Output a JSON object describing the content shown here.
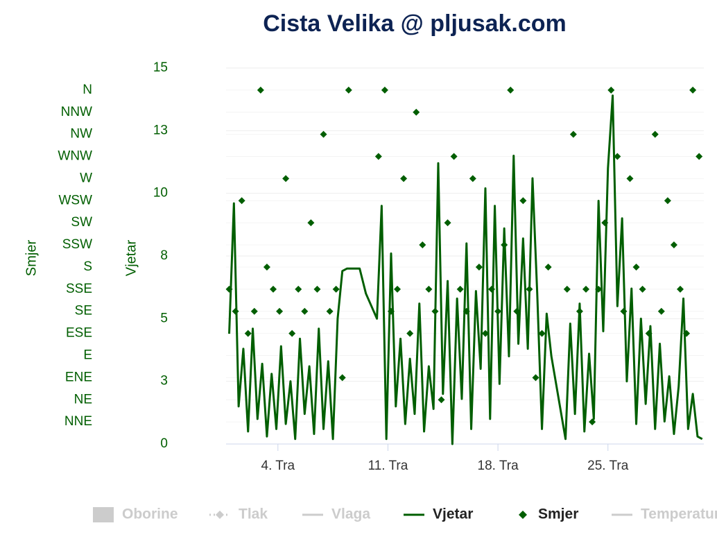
{
  "chart_data": {
    "type": "combo",
    "title": "Cista Velika @ pljusak.com",
    "xlim": [
      0.7,
      31.1
    ],
    "xticks": [
      {
        "value": 4,
        "label": "4. Tra"
      },
      {
        "value": 11,
        "label": "11. Tra"
      },
      {
        "value": 18,
        "label": "18. Tra"
      },
      {
        "value": 25,
        "label": "25. Tra"
      }
    ],
    "ylabel": "Vjetar",
    "ylim": [
      0,
      15
    ],
    "yticks": [
      {
        "value": 0,
        "label": "0"
      },
      {
        "value": 2.5,
        "label": "3"
      },
      {
        "value": 5,
        "label": "5"
      },
      {
        "value": 7.5,
        "label": "8"
      },
      {
        "value": 10,
        "label": "10"
      },
      {
        "value": 12.5,
        "label": "13"
      },
      {
        "value": 15,
        "label": "15"
      }
    ],
    "y2label": "Smjer",
    "y2lim": [
      0,
      382.5
    ],
    "y2ticks": [
      {
        "value": 22.5,
        "label": "NNE"
      },
      {
        "value": 45,
        "label": "NE"
      },
      {
        "value": 67.5,
        "label": "ENE"
      },
      {
        "value": 90,
        "label": "E"
      },
      {
        "value": 112.5,
        "label": "ESE"
      },
      {
        "value": 135,
        "label": "SE"
      },
      {
        "value": 157.5,
        "label": "SSE"
      },
      {
        "value": 180,
        "label": "S"
      },
      {
        "value": 202.5,
        "label": "SSW"
      },
      {
        "value": 225,
        "label": "SW"
      },
      {
        "value": 247.5,
        "label": "WSW"
      },
      {
        "value": 270,
        "label": "W"
      },
      {
        "value": 292.5,
        "label": "WNW"
      },
      {
        "value": 315,
        "label": "NW"
      },
      {
        "value": 337.5,
        "label": "NNW"
      },
      {
        "value": 360,
        "label": "N"
      }
    ],
    "grid": true,
    "series": [
      {
        "name": "Oborine",
        "type": "column",
        "color": "#cccccc",
        "visible": false
      },
      {
        "name": "Tlak",
        "type": "line",
        "marker": "diamond",
        "dash": "dot",
        "color": "#cccccc",
        "visible": false
      },
      {
        "name": "Vlaga",
        "type": "line",
        "color": "#cccccc",
        "visible": false
      },
      {
        "name": "Vjetar",
        "type": "line",
        "color": "#005e00",
        "visible": true,
        "x": [
          0.9,
          1.2,
          1.5,
          1.8,
          2.1,
          2.4,
          2.7,
          3.0,
          3.3,
          3.6,
          3.9,
          4.2,
          4.5,
          4.8,
          5.1,
          5.4,
          5.7,
          6.0,
          6.3,
          6.6,
          6.9,
          7.2,
          7.5,
          7.8,
          8.1,
          8.4,
          9.0,
          9.2,
          9.6,
          10.3,
          10.6,
          10.9,
          11.2,
          11.5,
          11.8,
          12.1,
          12.4,
          12.7,
          13.0,
          13.3,
          13.6,
          13.9,
          14.2,
          14.5,
          14.8,
          15.1,
          15.4,
          15.7,
          16.0,
          16.3,
          16.6,
          16.9,
          17.2,
          17.5,
          17.8,
          18.1,
          18.4,
          18.7,
          19.0,
          19.3,
          19.6,
          19.9,
          20.2,
          20.5,
          20.8,
          21.1,
          21.4,
          22.3,
          22.6,
          22.9,
          23.2,
          23.5,
          23.8,
          24.1,
          24.4,
          24.7,
          25.0,
          25.3,
          25.6,
          25.9,
          26.2,
          26.5,
          26.8,
          27.1,
          27.4,
          27.7,
          28.0,
          28.3,
          28.6,
          28.9,
          29.2,
          29.5,
          29.8,
          30.1,
          30.4,
          30.7,
          31.0
        ],
        "values": [
          4.4,
          9.6,
          1.5,
          3.8,
          0.5,
          4.6,
          1.0,
          3.2,
          0.3,
          2.8,
          0.6,
          3.9,
          0.8,
          2.5,
          0.2,
          4.2,
          1.2,
          3.1,
          0.4,
          4.6,
          0.6,
          3.3,
          0.2,
          5.0,
          6.9,
          7.0,
          7.0,
          7.0,
          6.0,
          5.0,
          9.5,
          0.2,
          7.6,
          1.5,
          4.2,
          0.8,
          3.4,
          1.2,
          5.6,
          0.5,
          3.1,
          1.4,
          11.2,
          2.0,
          6.5,
          0.0,
          5.8,
          1.8,
          8.0,
          0.6,
          6.1,
          3.0,
          10.2,
          1.0,
          9.5,
          2.4,
          8.6,
          3.5,
          11.5,
          4.0,
          8.2,
          3.8,
          10.6,
          6.0,
          0.6,
          5.2,
          3.5,
          0.2,
          4.8,
          1.2,
          5.6,
          0.5,
          3.6,
          1.0,
          9.7,
          4.5,
          11.0,
          13.9,
          5.5,
          9.0,
          2.5,
          6.2,
          0.8,
          5.0,
          1.6,
          4.7,
          0.6,
          4.0,
          0.9,
          2.7,
          0.4,
          2.3,
          5.8,
          0.6,
          2.0,
          0.3,
          0.2
        ]
      },
      {
        "name": "Smjer",
        "type": "scatter",
        "marker": "diamond",
        "axis": "y2",
        "color": "#005e00",
        "visible": true,
        "x": [
          0.9,
          1.3,
          1.7,
          2.1,
          2.5,
          2.9,
          3.3,
          3.7,
          4.1,
          4.5,
          4.9,
          5.3,
          5.7,
          6.1,
          6.5,
          6.9,
          7.3,
          7.7,
          8.1,
          8.5,
          10.4,
          10.8,
          11.2,
          11.6,
          12.0,
          12.4,
          12.8,
          13.2,
          13.6,
          14.0,
          14.4,
          14.8,
          15.2,
          15.6,
          16.0,
          16.4,
          16.8,
          17.2,
          17.6,
          18.0,
          18.4,
          18.8,
          19.2,
          19.6,
          20.0,
          20.4,
          20.8,
          21.2,
          22.4,
          22.8,
          23.2,
          23.6,
          24.0,
          24.4,
          24.8,
          25.2,
          25.6,
          26.0,
          26.4,
          26.8,
          27.2,
          27.6,
          28.0,
          28.4,
          28.8,
          29.2,
          29.6,
          30.0,
          30.4,
          30.8
        ],
        "values": [
          157.5,
          135,
          247.5,
          112.5,
          135,
          360,
          180,
          157.5,
          135,
          270,
          112.5,
          157.5,
          135,
          225,
          157.5,
          315,
          135,
          157.5,
          67.5,
          360,
          292.5,
          360,
          135,
          157.5,
          270,
          112.5,
          337.5,
          202.5,
          157.5,
          135,
          45,
          225,
          292.5,
          157.5,
          135,
          270,
          180,
          112.5,
          157.5,
          135,
          202.5,
          360,
          135,
          247.5,
          157.5,
          67.5,
          112.5,
          180,
          157.5,
          315,
          135,
          157.5,
          22.5,
          157.5,
          225,
          360,
          292.5,
          135,
          270,
          180,
          157.5,
          112.5,
          315,
          135,
          247.5,
          202.5,
          157.5,
          112.5,
          360,
          292.5
        ]
      },
      {
        "name": "Temperatura",
        "type": "line",
        "color": "#cccccc",
        "visible": false
      }
    ]
  }
}
